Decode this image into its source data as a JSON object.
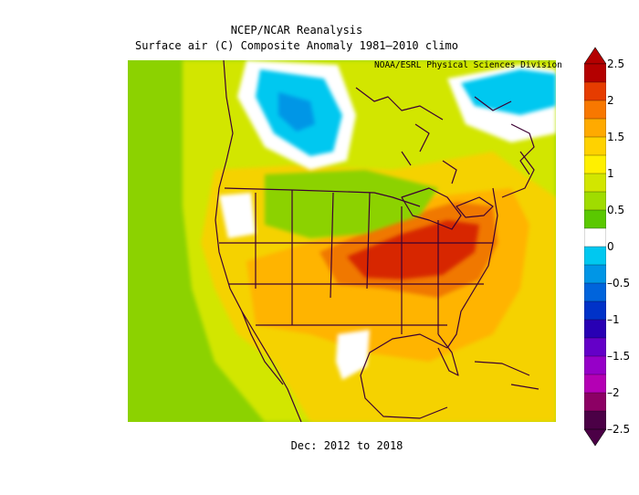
{
  "title_line1": "NCEP/NCAR Reanalysis",
  "title_line2": "Surface air (C) Composite Anomaly 1981–2010 climo",
  "credit": "NOAA/ESRL Physical Sciences Division",
  "footer": "Dec: 2012 to 2018",
  "colorbar": {
    "labels": [
      "2.5",
      "2",
      "1.5",
      "1",
      "0.5",
      "0",
      "–0.5",
      "–1",
      "–1.5",
      "–2",
      "–2.5"
    ],
    "colors": [
      "#b40000",
      "#e63c00",
      "#f87800",
      "#ffaa00",
      "#ffd200",
      "#fff000",
      "#d2e600",
      "#a0dc00",
      "#5ac800",
      "#ffffff",
      "#00c8f0",
      "#0096e6",
      "#0064dc",
      "#0032c8",
      "#2800b4",
      "#6400c8",
      "#9600c8",
      "#b400b4",
      "#8c0064",
      "#4b0046"
    ]
  },
  "colors": {
    "land_base": "#f5d200",
    "ocean_green": "#8cd200",
    "warm_core": "#d72800",
    "cold_core": "#1e3cc8",
    "boundary": "#3c0032"
  }
}
